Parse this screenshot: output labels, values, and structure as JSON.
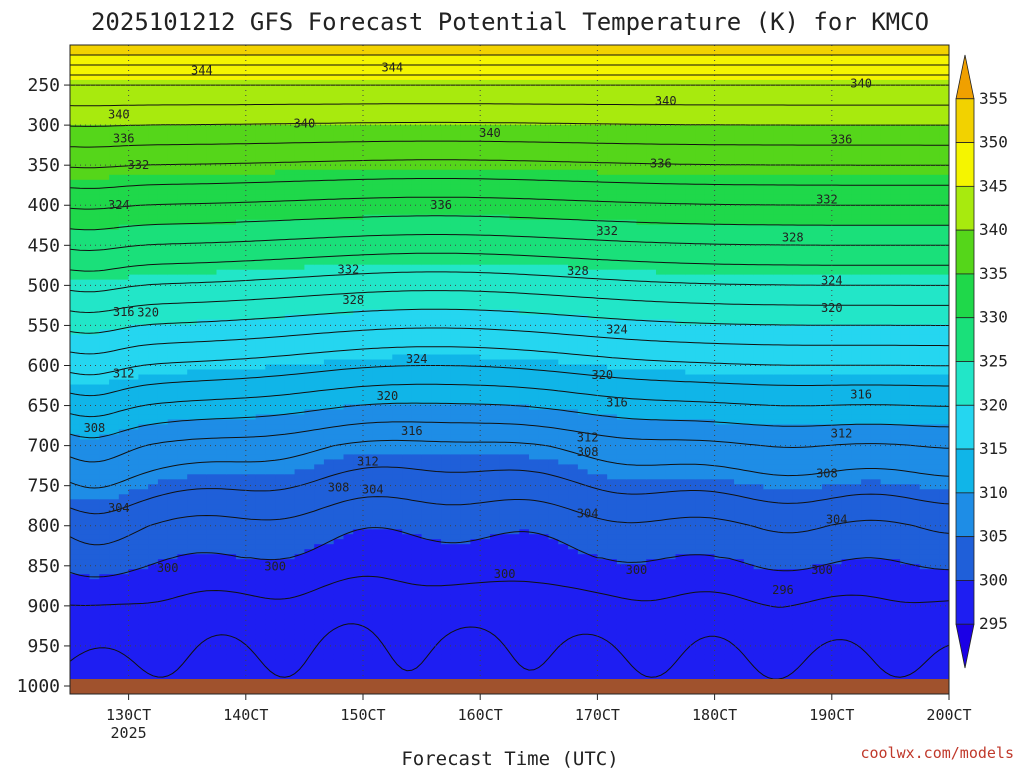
{
  "chart_data": {
    "type": "heatmap",
    "title": "2025101212 GFS Forecast Potential Temperature (K) for KMCO",
    "xlabel": "Forecast Time (UTC)",
    "ylabel": "",
    "x_ticks": [
      {
        "label": "130CT",
        "sub": "2025",
        "hour": 12
      },
      {
        "label": "140CT",
        "sub": "",
        "hour": 36
      },
      {
        "label": "150CT",
        "sub": "",
        "hour": 60
      },
      {
        "label": "160CT",
        "sub": "",
        "hour": 84
      },
      {
        "label": "170CT",
        "sub": "",
        "hour": 108
      },
      {
        "label": "180CT",
        "sub": "",
        "hour": 132
      },
      {
        "label": "190CT",
        "sub": "",
        "hour": 156
      },
      {
        "label": "200CT",
        "sub": "",
        "hour": 180
      }
    ],
    "x_range_hours": [
      0,
      180
    ],
    "y_ticks": [
      250,
      300,
      350,
      400,
      450,
      500,
      550,
      600,
      650,
      700,
      750,
      800,
      850,
      900,
      950,
      1000
    ],
    "y_range_hpa": [
      200,
      1010
    ],
    "colorbar": {
      "levels": [
        295,
        300,
        305,
        310,
        315,
        320,
        325,
        330,
        335,
        340,
        345,
        350,
        355
      ],
      "colors": [
        "#1b00e6",
        "#1e1ef2",
        "#1f5fd9",
        "#1e8de6",
        "#10b5e8",
        "#25d6f0",
        "#22e6c8",
        "#1ae07a",
        "#1fd84a",
        "#55d61a",
        "#a8ea0e",
        "#f5f500",
        "#f2d200",
        "#f0a000"
      ]
    },
    "profile": {
      "pressure_hpa": [
        200,
        250,
        300,
        350,
        400,
        450,
        500,
        550,
        600,
        650,
        700,
        750,
        800,
        850,
        900,
        950,
        1000
      ],
      "theta_k": [
        352,
        344,
        340,
        336,
        332,
        328,
        324,
        320,
        316,
        312,
        308,
        305,
        302,
        300,
        298,
        297,
        296
      ]
    },
    "contour_labels": [
      {
        "text": "344",
        "hour": 27,
        "p": 232
      },
      {
        "text": "344",
        "hour": 66,
        "p": 228
      },
      {
        "text": "340",
        "hour": 10,
        "p": 287
      },
      {
        "text": "340",
        "hour": 48,
        "p": 298
      },
      {
        "text": "340",
        "hour": 86,
        "p": 310
      },
      {
        "text": "340",
        "hour": 122,
        "p": 270
      },
      {
        "text": "340",
        "hour": 162,
        "p": 248
      },
      {
        "text": "336",
        "hour": 11,
        "p": 317
      },
      {
        "text": "336",
        "hour": 76,
        "p": 400
      },
      {
        "text": "336",
        "hour": 121,
        "p": 348
      },
      {
        "text": "336",
        "hour": 158,
        "p": 318
      },
      {
        "text": "332",
        "hour": 14,
        "p": 350
      },
      {
        "text": "332",
        "hour": 57,
        "p": 480
      },
      {
        "text": "332",
        "hour": 110,
        "p": 432
      },
      {
        "text": "332",
        "hour": 155,
        "p": 393
      },
      {
        "text": "328",
        "hour": 58,
        "p": 518
      },
      {
        "text": "328",
        "hour": 104,
        "p": 482
      },
      {
        "text": "328",
        "hour": 148,
        "p": 440
      },
      {
        "text": "324",
        "hour": 10,
        "p": 400
      },
      {
        "text": "324",
        "hour": 71,
        "p": 592
      },
      {
        "text": "324",
        "hour": 112,
        "p": 555
      },
      {
        "text": "324",
        "hour": 156,
        "p": 494
      },
      {
        "text": "320",
        "hour": 16,
        "p": 534
      },
      {
        "text": "320",
        "hour": 65,
        "p": 638
      },
      {
        "text": "320",
        "hour": 109,
        "p": 612
      },
      {
        "text": "320",
        "hour": 156,
        "p": 528
      },
      {
        "text": "316",
        "hour": 11,
        "p": 533
      },
      {
        "text": "316",
        "hour": 70,
        "p": 682
      },
      {
        "text": "316",
        "hour": 112,
        "p": 646
      },
      {
        "text": "316",
        "hour": 162,
        "p": 636
      },
      {
        "text": "312",
        "hour": 11,
        "p": 610
      },
      {
        "text": "312",
        "hour": 61,
        "p": 720
      },
      {
        "text": "312",
        "hour": 106,
        "p": 690
      },
      {
        "text": "312",
        "hour": 158,
        "p": 685
      },
      {
        "text": "308",
        "hour": 5,
        "p": 678
      },
      {
        "text": "308",
        "hour": 106,
        "p": 708
      },
      {
        "text": "308",
        "hour": 155,
        "p": 735
      },
      {
        "text": "308",
        "hour": 55,
        "p": 752
      },
      {
        "text": "304",
        "hour": 10,
        "p": 778
      },
      {
        "text": "304",
        "hour": 62,
        "p": 755
      },
      {
        "text": "304",
        "hour": 106,
        "p": 785
      },
      {
        "text": "304",
        "hour": 157,
        "p": 792
      },
      {
        "text": "300",
        "hour": 20,
        "p": 853
      },
      {
        "text": "300",
        "hour": 42,
        "p": 851
      },
      {
        "text": "300",
        "hour": 89,
        "p": 860
      },
      {
        "text": "300",
        "hour": 116,
        "p": 855
      },
      {
        "text": "300",
        "hour": 154,
        "p": 855
      },
      {
        "text": "296",
        "hour": 146,
        "p": 880
      }
    ],
    "grid": true
  },
  "credit": "coolwx.com/models"
}
